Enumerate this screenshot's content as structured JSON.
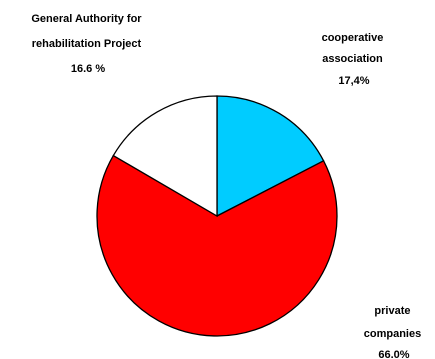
{
  "chart_data": {
    "type": "pie",
    "title": "",
    "slices": [
      {
        "label_lines": [
          "cooperative",
          "association",
          "17,4%"
        ],
        "value": 17.4,
        "color": "#00ccff"
      },
      {
        "label_lines": [
          "private",
          "companies",
          "66.0%"
        ],
        "value": 66.0,
        "color": "#ff0000"
      },
      {
        "label_lines": [
          "General Authority for",
          "rehabilitation Project",
          "16.6 %"
        ],
        "value": 16.6,
        "color": "#ffffff"
      }
    ],
    "start": "12 o'clock",
    "direction": "clockwise",
    "outline_color": "#000000"
  }
}
